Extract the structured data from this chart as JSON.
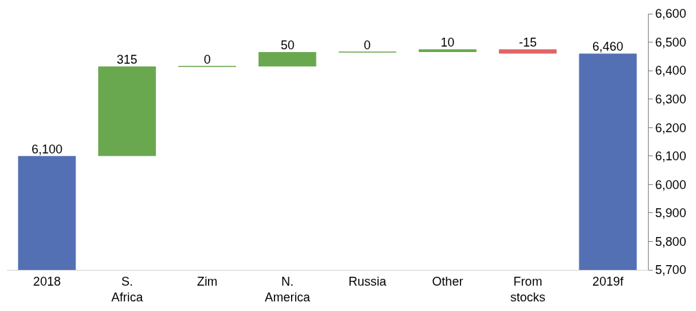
{
  "chart_data": {
    "type": "bar",
    "categories": [
      "2018",
      "S. Africa",
      "Zim",
      "N. America",
      "Russia",
      "Other",
      "From stocks",
      "2019f"
    ],
    "values": [
      6100,
      315,
      0,
      50,
      0,
      10,
      -15,
      6460
    ],
    "base": [
      null,
      6100,
      6415,
      6415,
      6465,
      6465,
      6475,
      null
    ],
    "colors": [
      "#5470b4",
      "#6aa84f",
      "#6aa84f",
      "#6aa84f",
      "#6aa84f",
      "#6aa84f",
      "#e06666",
      "#5470b4"
    ],
    "value_labels": [
      "6,100",
      "315",
      "0",
      "50",
      "0",
      "10",
      "-15",
      "6,460"
    ],
    "ylim": [
      5700,
      6600
    ],
    "yticks": [
      {
        "value": 5700,
        "label": "5,700"
      },
      {
        "value": 5800,
        "label": "5,800"
      },
      {
        "value": 5900,
        "label": "5,900"
      },
      {
        "value": 6000,
        "label": "6,000"
      },
      {
        "value": 6100,
        "label": "6,100"
      },
      {
        "value": 6200,
        "label": "6,200"
      },
      {
        "value": 6300,
        "label": "6,300"
      },
      {
        "value": 6400,
        "label": "6,400"
      },
      {
        "value": 6500,
        "label": "6,500"
      },
      {
        "value": 6600,
        "label": "6,600"
      }
    ],
    "legend": false
  }
}
